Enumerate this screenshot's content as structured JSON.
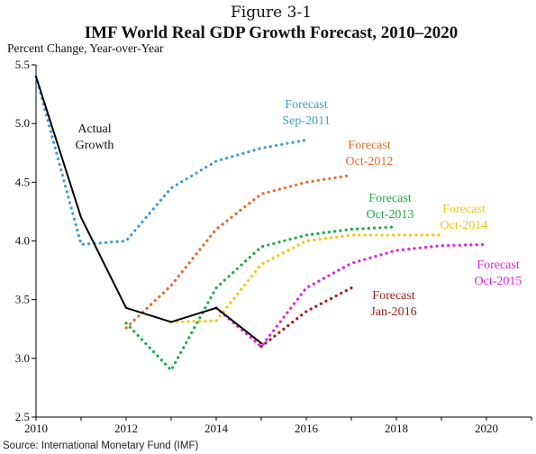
{
  "figure_number": "Figure 3-1",
  "source": "Source: International Monetary Fund (IMF)",
  "chart_data": {
    "type": "line",
    "title": "IMF World Real GDP Growth Forecast, 2010–2020",
    "ylabel": "Percent Change, Year-over-Year",
    "xlabel": "",
    "xlim": [
      2010,
      2021
    ],
    "ylim": [
      2.5,
      5.5
    ],
    "x_ticks": [
      2010,
      2012,
      2014,
      2016,
      2018,
      2020
    ],
    "x_tick_labels": [
      "2010",
      "2012",
      "2014",
      "2016",
      "2018",
      "2020"
    ],
    "y_ticks": [
      2.5,
      3.0,
      3.5,
      4.0,
      4.5,
      5.0,
      5.5
    ],
    "y_tick_labels": [
      "2.5",
      "3.0",
      "3.5",
      "4.0",
      "4.5",
      "5.0",
      "5.5"
    ],
    "grid": false,
    "series": [
      {
        "name": "Actual Growth",
        "label_lines": [
          "Actual",
          "Growth"
        ],
        "style": "solid",
        "color": "#000000",
        "x": [
          2010,
          2011,
          2012,
          2013,
          2014,
          2015
        ],
        "y": [
          5.4,
          4.2,
          3.43,
          3.31,
          3.43,
          3.13
        ]
      },
      {
        "name": "Forecast Sep-2011",
        "label_lines": [
          "Forecast",
          "Sep-2011"
        ],
        "style": "dotted",
        "color": "#3d9bd6",
        "x": [
          2010,
          2011,
          2012,
          2013,
          2014,
          2015,
          2016
        ],
        "y": [
          5.4,
          3.97,
          4.0,
          4.45,
          4.68,
          4.79,
          4.86
        ]
      },
      {
        "name": "Forecast Oct-2012",
        "label_lines": [
          "Forecast",
          "Oct-2012"
        ],
        "style": "dotted",
        "color": "#e8692a",
        "x": [
          2012,
          2013,
          2014,
          2015,
          2016,
          2017
        ],
        "y": [
          3.26,
          3.62,
          4.1,
          4.4,
          4.5,
          4.56
        ]
      },
      {
        "name": "Forecast Oct-2013",
        "label_lines": [
          "Forecast",
          "Oct-2013"
        ],
        "style": "dotted",
        "color": "#1faa4a",
        "x": [
          2012,
          2013,
          2014,
          2015,
          2016,
          2017,
          2018
        ],
        "y": [
          3.3,
          2.9,
          3.6,
          3.95,
          4.05,
          4.1,
          4.12
        ]
      },
      {
        "name": "Forecast Oct-2014",
        "label_lines": [
          "Forecast",
          "Oct-2014"
        ],
        "style": "dotted",
        "color": "#f5c518",
        "x": [
          2013,
          2014,
          2015,
          2016,
          2017,
          2018,
          2019
        ],
        "y": [
          3.31,
          3.32,
          3.8,
          4.0,
          4.05,
          4.05,
          4.05
        ]
      },
      {
        "name": "Forecast Oct-2015",
        "label_lines": [
          "Forecast",
          "Oct-2015"
        ],
        "style": "dotted",
        "color": "#dd22dd",
        "x": [
          2014,
          2015,
          2016,
          2017,
          2018,
          2019,
          2020
        ],
        "y": [
          3.43,
          3.1,
          3.6,
          3.81,
          3.92,
          3.96,
          3.97
        ]
      },
      {
        "name": "Forecast Jan-2016",
        "label_lines": [
          "Forecast",
          "Jan-2016"
        ],
        "style": "dotted",
        "color": "#a61c1c",
        "x": [
          2015,
          2016,
          2017
        ],
        "y": [
          3.1,
          3.4,
          3.6
        ]
      }
    ]
  }
}
